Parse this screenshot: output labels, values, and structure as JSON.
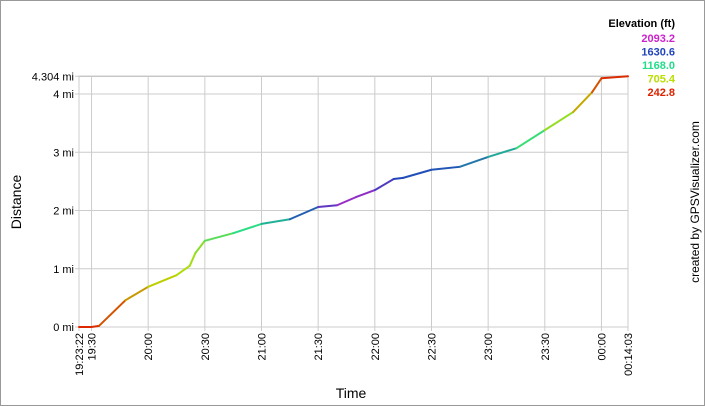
{
  "chart_data": {
    "type": "line",
    "x_label": "Time",
    "y_label": "Distance",
    "credit": "created by GPSVisualizer.com",
    "xlim": [
      "19:23:22",
      "00:14:03"
    ],
    "xticks": [
      "19:23:22",
      "19:30",
      "20:00",
      "20:30",
      "21:00",
      "21:30",
      "22:00",
      "22:30",
      "23:00",
      "23:30",
      "00:00",
      "00:14:03"
    ],
    "ylim": [
      0,
      4.304
    ],
    "yticks": [
      {
        "value": 0,
        "label": "0 mi"
      },
      {
        "value": 1,
        "label": "1 mi"
      },
      {
        "value": 2,
        "label": "2 mi"
      },
      {
        "value": 3,
        "label": "3 mi"
      },
      {
        "value": 4,
        "label": "4 mi"
      },
      {
        "value": 4.304,
        "label": "4.304 mi"
      }
    ],
    "grid": true,
    "x": [
      "19:23:22",
      "19:30",
      "19:34",
      "19:48",
      "20:00",
      "20:15",
      "20:22",
      "20:25",
      "20:30",
      "20:45",
      "21:00",
      "21:15",
      "21:30",
      "21:40",
      "21:50",
      "22:00",
      "22:10",
      "22:15",
      "22:30",
      "22:45",
      "23:00",
      "23:15",
      "23:30",
      "23:45",
      "23:55",
      "00:00",
      "00:14:03"
    ],
    "series": [
      {
        "name": "Distance",
        "values": [
          0,
          0,
          0.02,
          0.46,
          0.69,
          0.89,
          1.05,
          1.27,
          1.48,
          1.61,
          1.77,
          1.85,
          2.06,
          2.09,
          2.23,
          2.35,
          2.54,
          2.56,
          2.7,
          2.75,
          2.92,
          3.07,
          3.38,
          3.69,
          4.03,
          4.27,
          4.304
        ],
        "elevation": [
          250,
          260,
          280,
          450,
          620,
          720,
          760,
          800,
          900,
          1100,
          1200,
          1400,
          1700,
          1900,
          2000,
          1850,
          1650,
          1600,
          1600,
          1550,
          1400,
          1250,
          950,
          700,
          450,
          280,
          250
        ]
      }
    ],
    "colorbar": {
      "title": "Elevation (ft)",
      "ticks": [
        2093.2,
        1630.6,
        {
          "value": 1168,
          "label": "1168.0"
        },
        705.4,
        242.8
      ],
      "colors": [
        "#cc22cc",
        "#2244bb",
        "#22dd88",
        "#bbdd00",
        "#dd2200"
      ]
    }
  }
}
